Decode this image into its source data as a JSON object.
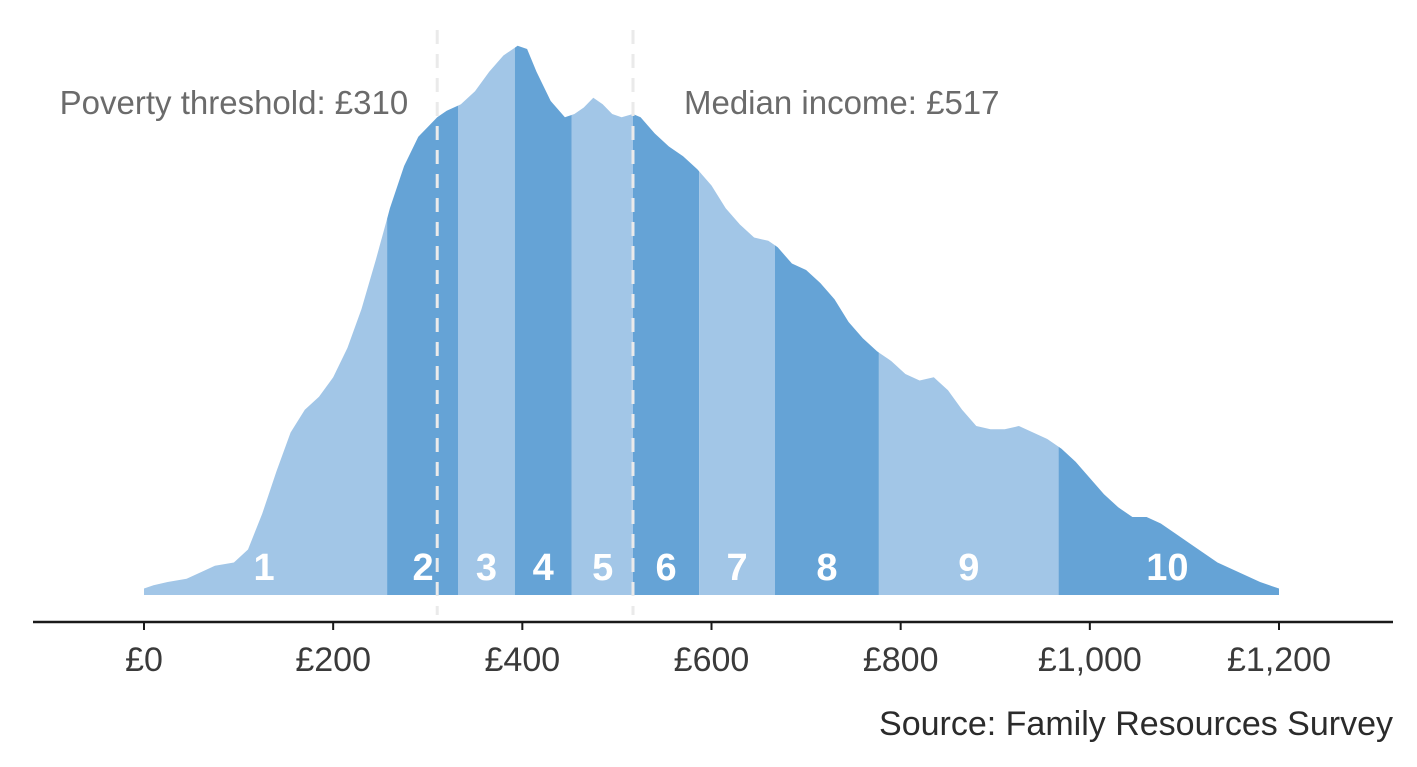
{
  "chart_data": {
    "type": "area",
    "subtype": "density-by-decile",
    "xlim": [
      0,
      1200
    ],
    "x_ticks": [
      0,
      200,
      400,
      600,
      800,
      1000,
      1200
    ],
    "x_tick_labels": [
      "£0",
      "£200",
      "£400",
      "£600",
      "£800",
      "£1,000",
      "£1,200"
    ],
    "grid": false,
    "density": {
      "x": [
        0,
        10,
        25,
        45,
        60,
        75,
        95,
        110,
        125,
        140,
        155,
        170,
        185,
        200,
        215,
        230,
        245,
        260,
        275,
        290,
        300,
        310,
        320,
        335,
        350,
        365,
        380,
        395,
        405,
        415,
        430,
        445,
        455,
        465,
        475,
        485,
        495,
        505,
        517,
        525,
        540,
        555,
        570,
        585,
        600,
        615,
        630,
        645,
        660,
        670,
        685,
        700,
        715,
        730,
        745,
        760,
        775,
        790,
        805,
        820,
        835,
        850,
        865,
        880,
        895,
        910,
        925,
        940,
        955,
        970,
        985,
        1000,
        1015,
        1030,
        1045,
        1060,
        1075,
        1090,
        1105,
        1120,
        1135,
        1150,
        1165,
        1180,
        1190,
        1200
      ],
      "y": [
        0.02,
        0.03,
        0.04,
        0.05,
        0.07,
        0.09,
        0.1,
        0.14,
        0.25,
        0.38,
        0.5,
        0.57,
        0.61,
        0.67,
        0.76,
        0.88,
        1.03,
        1.19,
        1.32,
        1.41,
        1.44,
        1.47,
        1.49,
        1.51,
        1.55,
        1.61,
        1.66,
        1.69,
        1.68,
        1.61,
        1.52,
        1.47,
        1.48,
        1.5,
        1.53,
        1.51,
        1.48,
        1.47,
        1.48,
        1.47,
        1.42,
        1.38,
        1.35,
        1.31,
        1.26,
        1.19,
        1.14,
        1.1,
        1.09,
        1.07,
        1.02,
        1.0,
        0.96,
        0.91,
        0.84,
        0.79,
        0.75,
        0.72,
        0.68,
        0.66,
        0.67,
        0.63,
        0.57,
        0.52,
        0.51,
        0.51,
        0.52,
        0.5,
        0.48,
        0.45,
        0.41,
        0.36,
        0.31,
        0.27,
        0.24,
        0.24,
        0.22,
        0.19,
        0.16,
        0.13,
        0.1,
        0.08,
        0.06,
        0.04,
        0.03,
        0.02
      ]
    },
    "deciles": [
      {
        "label": "1",
        "from": 0,
        "to": 257
      },
      {
        "label": "2",
        "from": 257,
        "to": 332
      },
      {
        "label": "3",
        "from": 332,
        "to": 392
      },
      {
        "label": "4",
        "from": 392,
        "to": 452
      },
      {
        "label": "5",
        "from": 452,
        "to": 517
      },
      {
        "label": "6",
        "from": 517,
        "to": 587
      },
      {
        "label": "7",
        "from": 587,
        "to": 667
      },
      {
        "label": "8",
        "from": 667,
        "to": 777
      },
      {
        "label": "9",
        "from": 777,
        "to": 967
      },
      {
        "label": "10",
        "from": 967,
        "to": 1200
      }
    ],
    "decile_label_positions": [
      127,
      295,
      362,
      422,
      485,
      552,
      627,
      722,
      872,
      1082
    ],
    "reference_lines": [
      {
        "x": 310,
        "label": "Poverty threshold: £310",
        "label_side": "left"
      },
      {
        "x": 517,
        "label": "Median income: £517",
        "label_side": "right"
      }
    ],
    "source": "Source: Family Resources Survey",
    "colors": {
      "light": "#a2c6e7",
      "dark": "#65a3d6",
      "ref_line": "#eaeaea",
      "axis": "#1a1a1a",
      "label": "#6b6b6b"
    }
  }
}
